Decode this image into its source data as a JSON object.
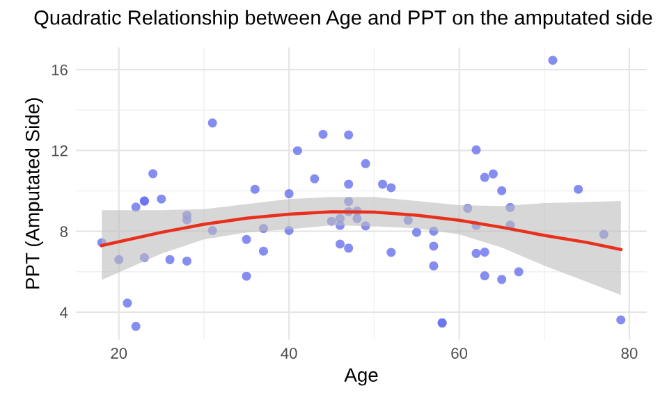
{
  "chart_data": {
    "type": "scatter",
    "title": "Quadratic Relationship between Age and PPT on the amputated side",
    "xlabel": "Age",
    "ylabel": "PPT (Amputated Side)",
    "xlim": [
      14.95,
      82.05
    ],
    "ylim": [
      2.64,
      17.1
    ],
    "xticks": [
      20,
      40,
      60,
      80
    ],
    "yticks": [
      4,
      8,
      12,
      16
    ],
    "grid": true,
    "series": [
      {
        "marker": "circle",
        "color": "#6670ee",
        "x": [
          18,
          20,
          21,
          22,
          22,
          23,
          23,
          23,
          24,
          25,
          26,
          28,
          28,
          28,
          31,
          31,
          35,
          35,
          36,
          37,
          37,
          40,
          40,
          41,
          43,
          44,
          45,
          46,
          46,
          46,
          47,
          47,
          47,
          47,
          47,
          48,
          48,
          49,
          49,
          51,
          52,
          52,
          54,
          55,
          57,
          57,
          57,
          58,
          58,
          61,
          62,
          62,
          62,
          63,
          63,
          63,
          64,
          65,
          65,
          66,
          66,
          67,
          71,
          74,
          77,
          79
        ],
        "values": [
          7.44,
          6.6,
          4.45,
          3.3,
          9.2,
          9.5,
          9.5,
          6.7,
          10.85,
          9.6,
          6.6,
          8.8,
          8.57,
          6.53,
          13.36,
          8.04,
          7.6,
          5.78,
          10.08,
          8.14,
          7.02,
          9.86,
          8.04,
          11.99,
          10.6,
          12.8,
          8.5,
          8.63,
          8.29,
          7.37,
          12.77,
          10.33,
          9.48,
          8.97,
          7.17,
          9.0,
          8.63,
          11.35,
          8.27,
          10.33,
          10.16,
          6.96,
          8.55,
          7.95,
          8.01,
          7.27,
          6.29,
          3.47,
          3.47,
          9.14,
          12.03,
          8.29,
          6.91,
          10.67,
          6.97,
          5.8,
          10.84,
          10.01,
          5.62,
          9.18,
          8.31,
          6.0,
          16.46,
          10.08,
          7.85,
          3.62
        ]
      },
      {
        "type": "line",
        "color": "#e8301c",
        "line_style": "solid",
        "x": [
          18,
          25,
          30,
          35,
          40,
          45,
          50,
          55,
          60,
          65,
          70,
          75,
          79
        ],
        "values": [
          7.3,
          7.95,
          8.35,
          8.65,
          8.85,
          8.97,
          8.95,
          8.8,
          8.55,
          8.2,
          7.8,
          7.45,
          7.1
        ],
        "lower": [
          5.6,
          6.9,
          7.6,
          7.95,
          8.1,
          8.3,
          8.25,
          8.15,
          7.85,
          7.2,
          6.3,
          5.5,
          4.85
        ],
        "upper": [
          9.05,
          9.05,
          9.1,
          9.35,
          9.6,
          9.7,
          9.7,
          9.5,
          9.3,
          9.25,
          9.4,
          9.45,
          9.5
        ]
      }
    ]
  }
}
